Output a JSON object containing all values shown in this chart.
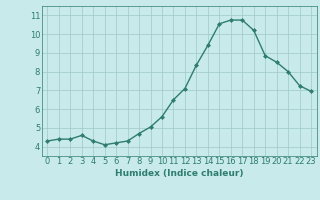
{
  "x": [
    0,
    1,
    2,
    3,
    4,
    5,
    6,
    7,
    8,
    9,
    10,
    11,
    12,
    13,
    14,
    15,
    16,
    17,
    18,
    19,
    20,
    21,
    22,
    23
  ],
  "y": [
    4.3,
    4.4,
    4.4,
    4.6,
    4.3,
    4.1,
    4.2,
    4.3,
    4.7,
    5.05,
    5.6,
    6.5,
    7.1,
    8.35,
    9.4,
    10.55,
    10.75,
    10.75,
    10.2,
    8.85,
    8.5,
    8.0,
    7.25,
    6.95
  ],
  "line_color": "#2e7d6e",
  "marker": "D",
  "marker_size": 2.0,
  "linewidth": 1.0,
  "bg_color": "#c8eaea",
  "grid_color": "#9ec8c8",
  "xlabel": "Humidex (Indice chaleur)",
  "xlim": [
    -0.5,
    23.5
  ],
  "ylim": [
    3.5,
    11.5
  ],
  "yticks": [
    4,
    5,
    6,
    7,
    8,
    9,
    10,
    11
  ],
  "xticks": [
    0,
    1,
    2,
    3,
    4,
    5,
    6,
    7,
    8,
    9,
    10,
    11,
    12,
    13,
    14,
    15,
    16,
    17,
    18,
    19,
    20,
    21,
    22,
    23
  ],
  "xlabel_fontsize": 6.5,
  "tick_fontsize": 6.0
}
